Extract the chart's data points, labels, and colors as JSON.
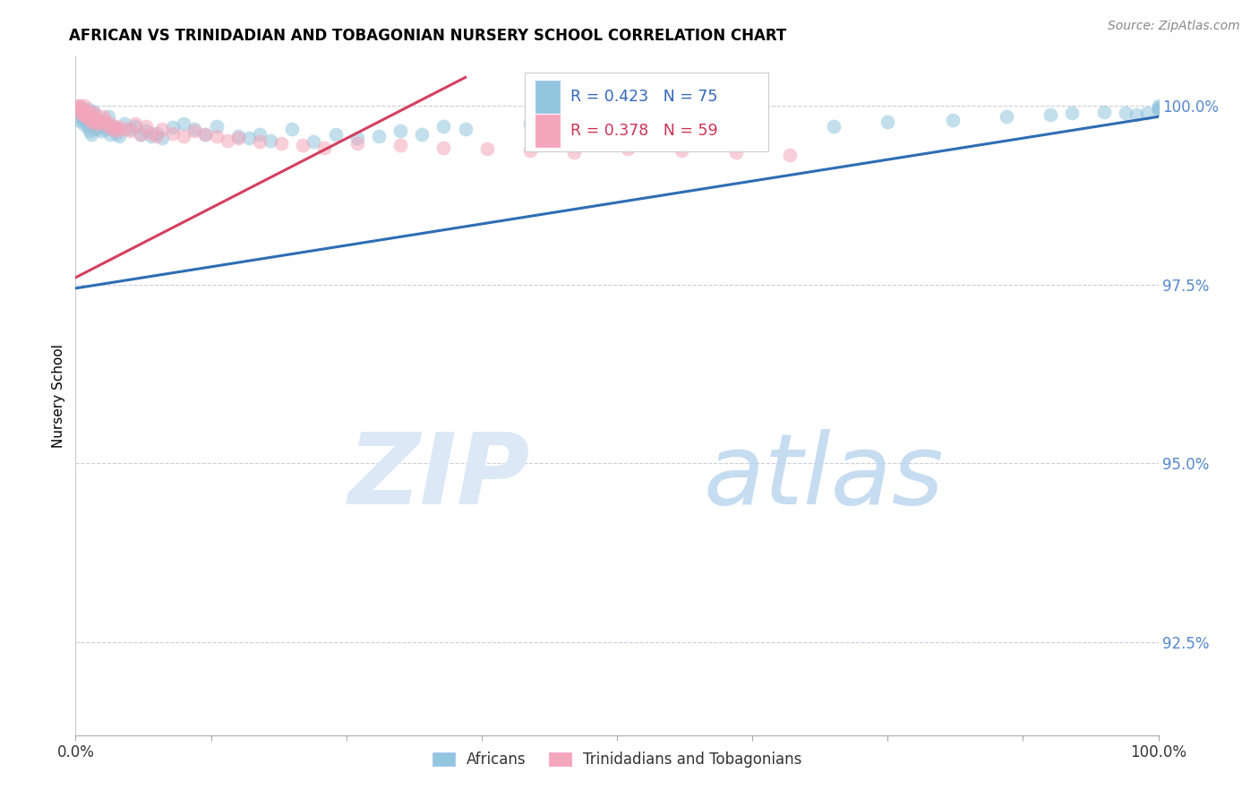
{
  "title": "AFRICAN VS TRINIDADIAN AND TOBAGONIAN NURSERY SCHOOL CORRELATION CHART",
  "source": "Source: ZipAtlas.com",
  "ylabel": "Nursery School",
  "ytick_values": [
    1.0,
    0.975,
    0.95,
    0.925
  ],
  "xmin": 0.0,
  "xmax": 1.0,
  "ymin": 0.912,
  "ymax": 1.007,
  "legend_label_blue": "Africans",
  "legend_label_pink": "Trinidadians and Tobagonians",
  "blue_color": "#92C5DE",
  "pink_color": "#F4A6BB",
  "blue_line_color": "#2E6DB4",
  "pink_line_color": "#D44060",
  "blue_line_x": [
    0.0,
    1.0
  ],
  "blue_line_y": [
    0.9745,
    0.9985
  ],
  "pink_line_x": [
    0.0,
    0.36
  ],
  "pink_line_y": [
    0.976,
    1.004
  ],
  "blue_scatter_x": [
    0.001,
    0.002,
    0.003,
    0.004,
    0.005,
    0.006,
    0.007,
    0.008,
    0.009,
    0.01,
    0.011,
    0.012,
    0.013,
    0.014,
    0.015,
    0.016,
    0.017,
    0.018,
    0.019,
    0.02,
    0.022,
    0.024,
    0.025,
    0.026,
    0.028,
    0.03,
    0.032,
    0.034,
    0.036,
    0.038,
    0.04,
    0.045,
    0.05,
    0.055,
    0.06,
    0.065,
    0.07,
    0.075,
    0.08,
    0.09,
    0.1,
    0.11,
    0.12,
    0.13,
    0.15,
    0.16,
    0.17,
    0.18,
    0.2,
    0.22,
    0.24,
    0.26,
    0.28,
    0.3,
    0.32,
    0.34,
    0.36,
    0.42,
    0.48,
    0.55,
    0.62,
    0.7,
    0.75,
    0.81,
    0.86,
    0.9,
    0.92,
    0.95,
    0.97,
    0.98,
    0.99,
    1.0,
    1.0,
    1.0,
    1.0
  ],
  "blue_scatter_y": [
    0.999,
    0.9985,
    0.998,
    0.9998,
    0.9992,
    0.9988,
    0.9975,
    0.9995,
    0.9982,
    0.9978,
    0.997,
    0.9995,
    0.9965,
    0.9985,
    0.996,
    0.9988,
    0.9992,
    0.9975,
    0.9968,
    0.997,
    0.998,
    0.9965,
    0.9975,
    0.9972,
    0.9968,
    0.9985,
    0.996,
    0.9972,
    0.9968,
    0.9962,
    0.9958,
    0.9975,
    0.9968,
    0.9972,
    0.996,
    0.9965,
    0.9958,
    0.9962,
    0.9955,
    0.997,
    0.9975,
    0.9968,
    0.996,
    0.9972,
    0.9958,
    0.9955,
    0.996,
    0.9952,
    0.9968,
    0.995,
    0.996,
    0.9955,
    0.9958,
    0.9965,
    0.996,
    0.9972,
    0.9968,
    0.9975,
    0.9958,
    0.9962,
    0.997,
    0.9972,
    0.9978,
    0.998,
    0.9985,
    0.9988,
    0.999,
    0.9992,
    0.999,
    0.9988,
    0.999,
    0.9995,
    1.0,
    0.9998,
    0.9995
  ],
  "pink_scatter_x": [
    0.001,
    0.002,
    0.003,
    0.004,
    0.005,
    0.006,
    0.007,
    0.008,
    0.009,
    0.01,
    0.011,
    0.012,
    0.013,
    0.014,
    0.015,
    0.016,
    0.017,
    0.018,
    0.019,
    0.02,
    0.022,
    0.024,
    0.025,
    0.027,
    0.03,
    0.032,
    0.034,
    0.036,
    0.038,
    0.04,
    0.045,
    0.05,
    0.055,
    0.06,
    0.065,
    0.07,
    0.075,
    0.08,
    0.09,
    0.1,
    0.11,
    0.12,
    0.13,
    0.14,
    0.15,
    0.17,
    0.19,
    0.21,
    0.23,
    0.26,
    0.3,
    0.34,
    0.38,
    0.42,
    0.46,
    0.51,
    0.56,
    0.61,
    0.66
  ],
  "pink_scatter_y": [
    1.0,
    0.9998,
    0.9995,
    1.0,
    0.9992,
    0.9988,
    0.9995,
    1.0,
    0.9985,
    0.999,
    0.9988,
    0.9985,
    0.9982,
    0.9992,
    0.9978,
    0.9985,
    0.999,
    0.998,
    0.9975,
    0.9978,
    0.9982,
    0.9975,
    0.9985,
    0.998,
    0.9972,
    0.9975,
    0.9968,
    0.9972,
    0.9965,
    0.997,
    0.9968,
    0.9965,
    0.9975,
    0.996,
    0.9972,
    0.9962,
    0.9958,
    0.9968,
    0.9962,
    0.9958,
    0.9965,
    0.996,
    0.9958,
    0.9952,
    0.9955,
    0.995,
    0.9948,
    0.9945,
    0.9942,
    0.9948,
    0.9945,
    0.9942,
    0.994,
    0.9938,
    0.9935,
    0.994,
    0.9938,
    0.9935,
    0.9932
  ]
}
